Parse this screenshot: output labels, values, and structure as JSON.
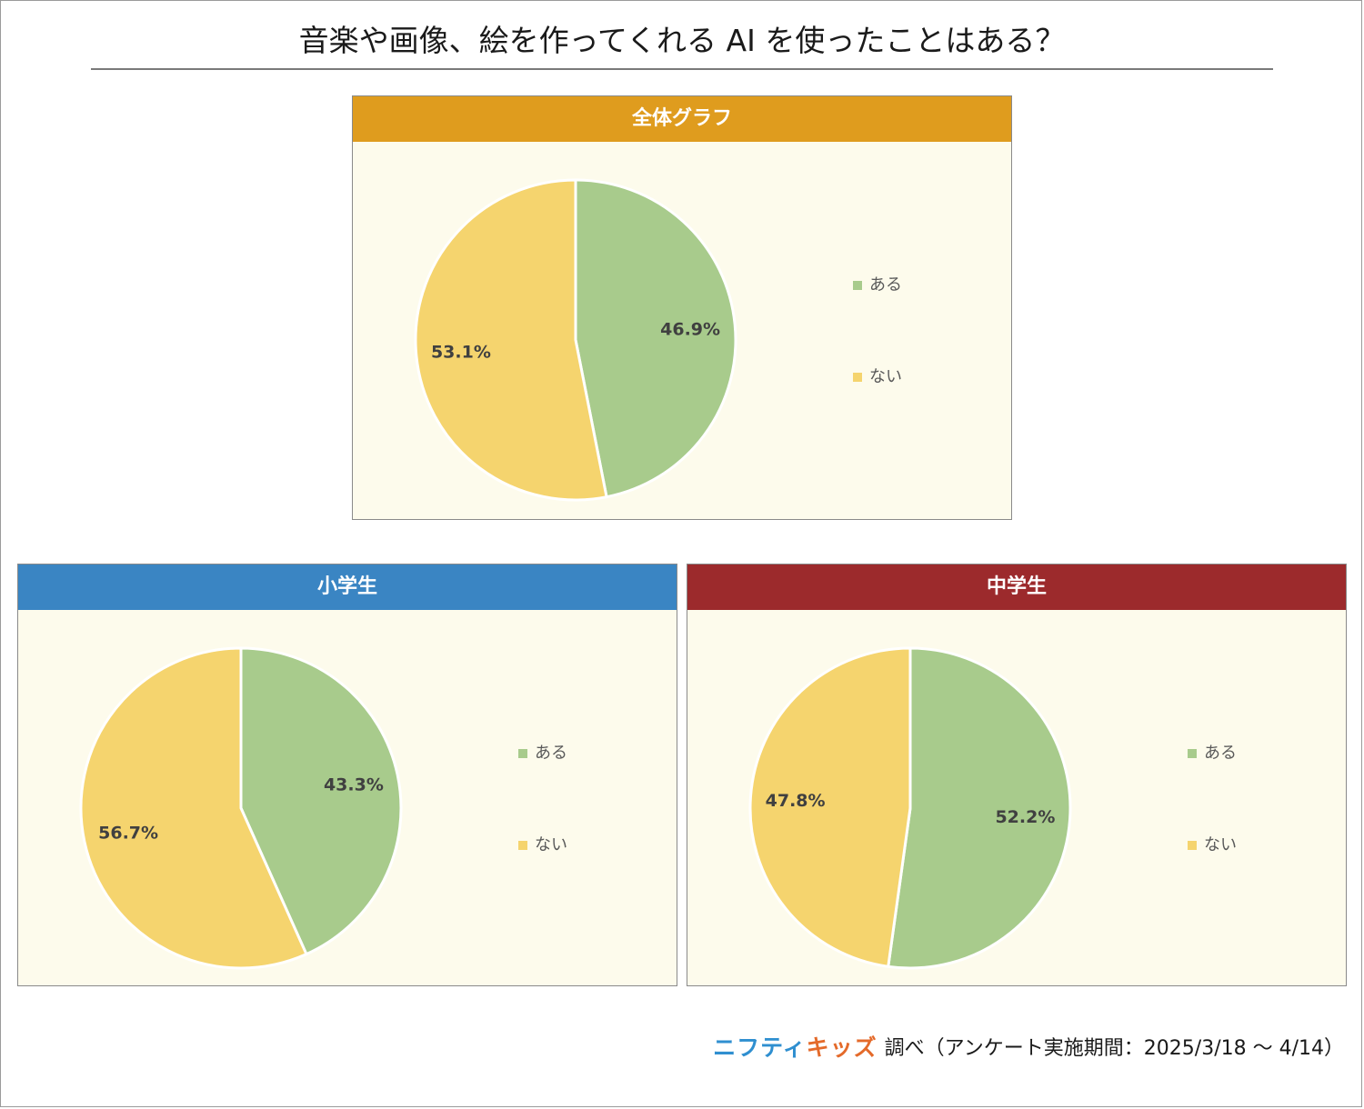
{
  "title": "音楽や画像、絵を作ってくれる AI を使ったことはある？",
  "colors": {
    "aru": "#a8cb8c",
    "nai": "#f5d46e",
    "panel_bg": "#fdfbec",
    "header_overall": "#df9c1e",
    "header_elementary": "#3a85c3",
    "header_junior": "#9c2a2c"
  },
  "chart_data": [
    {
      "type": "pie",
      "title": "全体グラフ",
      "categories": [
        "ある",
        "ない"
      ],
      "values": [
        46.9,
        53.1
      ],
      "labels": [
        "46.9%",
        "53.1%"
      ],
      "legend_position": "right"
    },
    {
      "type": "pie",
      "title": "小学生",
      "categories": [
        "ある",
        "ない"
      ],
      "values": [
        43.3,
        56.7
      ],
      "labels": [
        "43.3%",
        "56.7%"
      ],
      "legend_position": "right"
    },
    {
      "type": "pie",
      "title": "中学生",
      "categories": [
        "ある",
        "ない"
      ],
      "values": [
        52.2,
        47.8
      ],
      "labels": [
        "52.2%",
        "47.8%"
      ],
      "legend_position": "right"
    }
  ],
  "footer": {
    "brand_part1": "ニフティ",
    "brand_part2": "キッズ",
    "text": "調べ（アンケート実施期間：2025/3/18 ～ 4/14）"
  }
}
